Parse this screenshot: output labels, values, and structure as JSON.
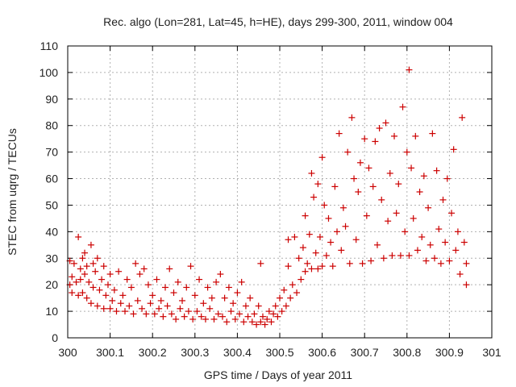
{
  "chart_data": {
    "type": "scatter",
    "title": "Rec. algo (Lon=281, Lat=45, h=HE), days 299-300, 2011, window 004",
    "xlabel": "GPS time / Days of year 2011",
    "ylabel": "STEC from uqrg / TECUs",
    "xlim": [
      300,
      301
    ],
    "ylim": [
      0,
      110
    ],
    "xticks": [
      "300",
      "300.1",
      "300.2",
      "300.3",
      "300.4",
      "300.5",
      "300.6",
      "300.7",
      "300.8",
      "300.9",
      "301"
    ],
    "yticks": [
      "0",
      "10",
      "20",
      "30",
      "40",
      "50",
      "60",
      "70",
      "80",
      "90",
      "100",
      "110"
    ],
    "grid": true,
    "marker": "+",
    "color": "#cc0000",
    "series": [
      {
        "points": [
          [
            300.005,
            29
          ],
          [
            300.005,
            20
          ],
          [
            300.01,
            23
          ],
          [
            300.01,
            17
          ],
          [
            300.015,
            28
          ],
          [
            300.02,
            21
          ],
          [
            300.025,
            38
          ],
          [
            300.025,
            16
          ],
          [
            300.03,
            26
          ],
          [
            300.03,
            22
          ],
          [
            300.035,
            30
          ],
          [
            300.035,
            17
          ],
          [
            300.04,
            32
          ],
          [
            300.04,
            24
          ],
          [
            300.045,
            27
          ],
          [
            300.045,
            15
          ],
          [
            300.05,
            21
          ],
          [
            300.055,
            35
          ],
          [
            300.055,
            13
          ],
          [
            300.06,
            28
          ],
          [
            300.06,
            19
          ],
          [
            300.065,
            25
          ],
          [
            300.07,
            12
          ],
          [
            300.07,
            30
          ],
          [
            300.075,
            18
          ],
          [
            300.08,
            22
          ],
          [
            300.085,
            11
          ],
          [
            300.085,
            27
          ],
          [
            300.09,
            16
          ],
          [
            300.095,
            20
          ],
          [
            300.1,
            11
          ],
          [
            300.1,
            24
          ],
          [
            300.105,
            14
          ],
          [
            300.11,
            18
          ],
          [
            300.115,
            10
          ],
          [
            300.12,
            25
          ],
          [
            300.125,
            13
          ],
          [
            300.13,
            16
          ],
          [
            300.135,
            10
          ],
          [
            300.14,
            22
          ],
          [
            300.145,
            12
          ],
          [
            300.15,
            19
          ],
          [
            300.155,
            9
          ],
          [
            300.16,
            28
          ],
          [
            300.165,
            14
          ],
          [
            300.17,
            24
          ],
          [
            300.175,
            11
          ],
          [
            300.18,
            26
          ],
          [
            300.185,
            9
          ],
          [
            300.19,
            20
          ],
          [
            300.195,
            13
          ],
          [
            300.2,
            16
          ],
          [
            300.205,
            9
          ],
          [
            300.21,
            22
          ],
          [
            300.215,
            11
          ],
          [
            300.22,
            14
          ],
          [
            300.225,
            8
          ],
          [
            300.23,
            19
          ],
          [
            300.235,
            12
          ],
          [
            300.24,
            26
          ],
          [
            300.245,
            9
          ],
          [
            300.25,
            17
          ],
          [
            300.255,
            7
          ],
          [
            300.26,
            21
          ],
          [
            300.265,
            11
          ],
          [
            300.27,
            14
          ],
          [
            300.275,
            8
          ],
          [
            300.28,
            19
          ],
          [
            300.285,
            10
          ],
          [
            300.29,
            27
          ],
          [
            300.295,
            7
          ],
          [
            300.3,
            16
          ],
          [
            300.305,
            10
          ],
          [
            300.31,
            22
          ],
          [
            300.315,
            8
          ],
          [
            300.32,
            13
          ],
          [
            300.325,
            7
          ],
          [
            300.33,
            19
          ],
          [
            300.335,
            11
          ],
          [
            300.34,
            15
          ],
          [
            300.345,
            7
          ],
          [
            300.35,
            21
          ],
          [
            300.355,
            9
          ],
          [
            300.36,
            24
          ],
          [
            300.365,
            8
          ],
          [
            300.37,
            15
          ],
          [
            300.375,
            6
          ],
          [
            300.38,
            19
          ],
          [
            300.385,
            10
          ],
          [
            300.39,
            13
          ],
          [
            300.395,
            7
          ],
          [
            300.4,
            17
          ],
          [
            300.405,
            9
          ],
          [
            300.41,
            21
          ],
          [
            300.415,
            6
          ],
          [
            300.42,
            12
          ],
          [
            300.425,
            8
          ],
          [
            300.43,
            15
          ],
          [
            300.435,
            6
          ],
          [
            300.44,
            9
          ],
          [
            300.445,
            5
          ],
          [
            300.45,
            12
          ],
          [
            300.455,
            28
          ],
          [
            300.455,
            6
          ],
          [
            300.46,
            8
          ],
          [
            300.465,
            5
          ],
          [
            300.47,
            7
          ],
          [
            300.475,
            10
          ],
          [
            300.48,
            6
          ],
          [
            300.485,
            9
          ],
          [
            300.49,
            12
          ],
          [
            300.495,
            8
          ],
          [
            300.5,
            15
          ],
          [
            300.505,
            10
          ],
          [
            300.51,
            18
          ],
          [
            300.515,
            12
          ],
          [
            300.52,
            27
          ],
          [
            300.52,
            37
          ],
          [
            300.525,
            15
          ],
          [
            300.53,
            20
          ],
          [
            300.535,
            38
          ],
          [
            300.54,
            17
          ],
          [
            300.545,
            30
          ],
          [
            300.55,
            22
          ],
          [
            300.555,
            34
          ],
          [
            300.56,
            46
          ],
          [
            300.56,
            25
          ],
          [
            300.565,
            28
          ],
          [
            300.57,
            39
          ],
          [
            300.575,
            62
          ],
          [
            300.575,
            26
          ],
          [
            300.58,
            53
          ],
          [
            300.585,
            32
          ],
          [
            300.59,
            58
          ],
          [
            300.59,
            26
          ],
          [
            300.595,
            38
          ],
          [
            300.6,
            68
          ],
          [
            300.6,
            27
          ],
          [
            300.605,
            50
          ],
          [
            300.61,
            31
          ],
          [
            300.615,
            45
          ],
          [
            300.62,
            36
          ],
          [
            300.625,
            27
          ],
          [
            300.63,
            57
          ],
          [
            300.635,
            40
          ],
          [
            300.64,
            77
          ],
          [
            300.645,
            33
          ],
          [
            300.65,
            49
          ],
          [
            300.655,
            42
          ],
          [
            300.66,
            70
          ],
          [
            300.665,
            28
          ],
          [
            300.67,
            83
          ],
          [
            300.675,
            60
          ],
          [
            300.68,
            37
          ],
          [
            300.685,
            55
          ],
          [
            300.69,
            66
          ],
          [
            300.695,
            28
          ],
          [
            300.7,
            75
          ],
          [
            300.705,
            46
          ],
          [
            300.71,
            64
          ],
          [
            300.715,
            29
          ],
          [
            300.72,
            57
          ],
          [
            300.725,
            74
          ],
          [
            300.73,
            35
          ],
          [
            300.735,
            79
          ],
          [
            300.74,
            52
          ],
          [
            300.745,
            30
          ],
          [
            300.75,
            81
          ],
          [
            300.755,
            44
          ],
          [
            300.76,
            62
          ],
          [
            300.765,
            31
          ],
          [
            300.77,
            76
          ],
          [
            300.775,
            47
          ],
          [
            300.78,
            58
          ],
          [
            300.785,
            31
          ],
          [
            300.79,
            87
          ],
          [
            300.795,
            40
          ],
          [
            300.8,
            70
          ],
          [
            300.805,
            101
          ],
          [
            300.805,
            31
          ],
          [
            300.81,
            64
          ],
          [
            300.815,
            45
          ],
          [
            300.82,
            76
          ],
          [
            300.825,
            33
          ],
          [
            300.83,
            55
          ],
          [
            300.835,
            38
          ],
          [
            300.84,
            61
          ],
          [
            300.845,
            29
          ],
          [
            300.85,
            49
          ],
          [
            300.855,
            35
          ],
          [
            300.86,
            77
          ],
          [
            300.865,
            30
          ],
          [
            300.87,
            63
          ],
          [
            300.875,
            41
          ],
          [
            300.88,
            28
          ],
          [
            300.885,
            52
          ],
          [
            300.89,
            36
          ],
          [
            300.895,
            60
          ],
          [
            300.9,
            29
          ],
          [
            300.905,
            47
          ],
          [
            300.91,
            71
          ],
          [
            300.915,
            33
          ],
          [
            300.92,
            40
          ],
          [
            300.925,
            24
          ],
          [
            300.93,
            83
          ],
          [
            300.935,
            36
          ],
          [
            300.94,
            28
          ],
          [
            300.94,
            20
          ]
        ]
      }
    ]
  }
}
